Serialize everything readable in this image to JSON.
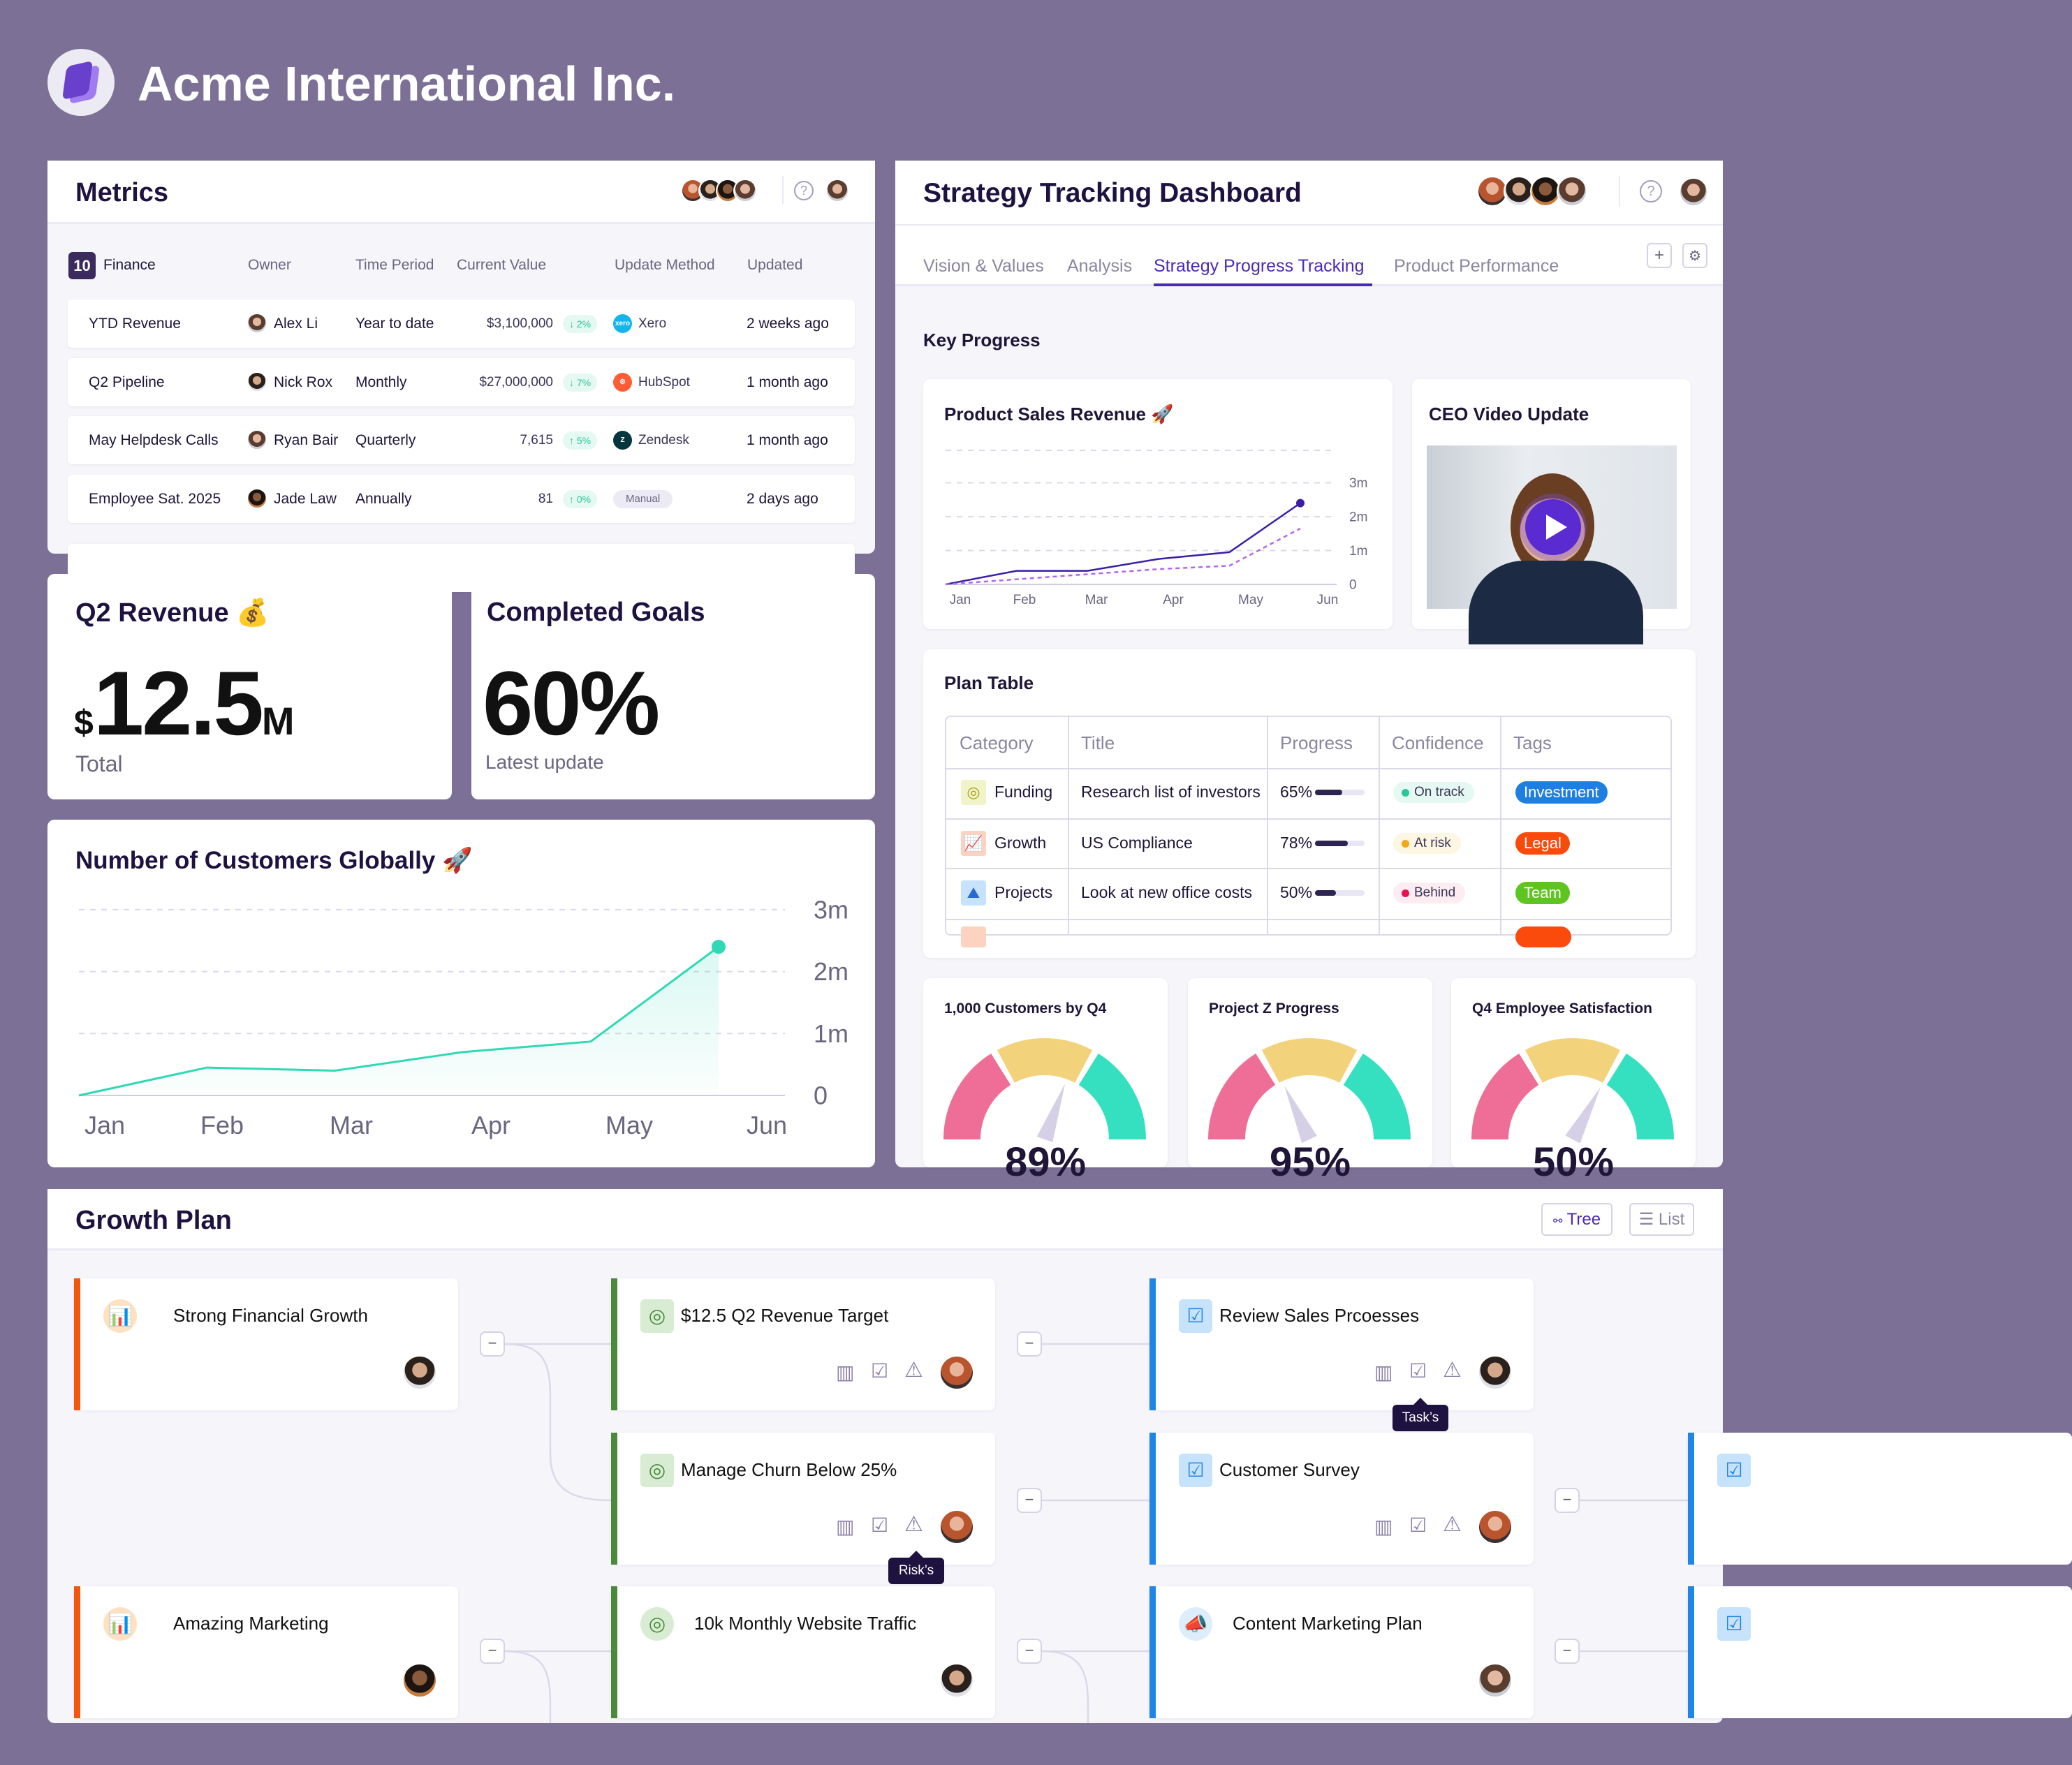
{
  "app": {
    "title": "Acme International Inc."
  },
  "metrics": {
    "title": "Metrics",
    "group_count": "10",
    "group_name": "Finance",
    "columns": [
      "Owner",
      "Time Period",
      "Current Value",
      "Update Method",
      "Updated"
    ],
    "rows": [
      {
        "name": "YTD Revenue",
        "owner": "Alex Li",
        "period": "Year to date",
        "value": "$3,100,000",
        "change": "↓ 2%",
        "method": "Xero",
        "method_icon": "xero-logo",
        "updated": "2 weeks ago"
      },
      {
        "name": "Q2 Pipeline",
        "owner": "Nick Rox",
        "period": "Monthly",
        "value": "$27,000,000",
        "change": "↓ 7%",
        "method": "HubSpot",
        "method_icon": "hubspot-logo",
        "updated": "1 month ago"
      },
      {
        "name": "May Helpdesk Calls",
        "owner": "Ryan Bair",
        "period": "Quarterly",
        "value": "7,615",
        "change": "↑ 5%",
        "method": "Zendesk",
        "method_icon": "zendesk-logo",
        "updated": "1 month ago"
      },
      {
        "name": "Employee Sat. 2025",
        "owner": "Jade Law",
        "period": "Annually",
        "value": "81",
        "change": "↑ 0%",
        "method": "Manual",
        "method_icon": "",
        "updated": "2 days ago"
      }
    ]
  },
  "q2_revenue": {
    "title": "Q2 Revenue 💰",
    "currency": "$",
    "value": "12.5",
    "unit": "M",
    "caption": "Total"
  },
  "completed_goals": {
    "title": "Completed Goals",
    "value": "60%",
    "caption": "Latest update"
  },
  "chart_data": [
    {
      "type": "area",
      "title": "Number of Customers Globally 🚀",
      "categories": [
        "Jan",
        "Feb",
        "Mar",
        "Apr",
        "May",
        "Jun"
      ],
      "y_ticks": [
        "0",
        "1m",
        "2m",
        "3m"
      ],
      "ylim": [
        0,
        3
      ],
      "grid": true,
      "color": "#2fd9b5",
      "series": [
        {
          "values": [
            0,
            0.45,
            0.4,
            0.7,
            0.87,
            2.4
          ]
        }
      ]
    },
    {
      "type": "line",
      "title": "Product Sales Revenue 🚀",
      "categories": [
        "Jan",
        "Feb",
        "Mar",
        "Apr",
        "May",
        "Jun"
      ],
      "y_ticks": [
        "0",
        "1m",
        "2m",
        "3m"
      ],
      "ylim": [
        0,
        4
      ],
      "grid": true,
      "series": [
        {
          "values": [
            0,
            0.4,
            0.4,
            0.75,
            0.95,
            2.4
          ],
          "color": "#3b1fa3",
          "style": "solid"
        },
        {
          "values": [
            0,
            0.15,
            0.3,
            0.45,
            0.55,
            1.65
          ],
          "color": "#b266f0",
          "style": "dashed"
        }
      ]
    }
  ],
  "strategy": {
    "title": "Strategy Tracking Dashboard",
    "tabs": [
      "Vision & Values",
      "Analysis",
      "Strategy Progress Tracking",
      "Product Performance"
    ],
    "active_tab": 2,
    "add_label": "+",
    "section": "Key Progress",
    "video_title": "CEO Video Update",
    "plan_table": {
      "title": "Plan Table",
      "columns": [
        "Category",
        "Title",
        "Progress",
        "Confidence",
        "Tags"
      ],
      "rows": [
        {
          "category": "Funding",
          "icon": "target-icon",
          "icon_bg": "#f1f3c8",
          "title": "Research list of investors",
          "progress": "65%",
          "progress_value": 65,
          "confidence": "On track",
          "conf_color": "#2bc79a",
          "conf_bg": "#e6f8f2",
          "tag": "Investment",
          "tag_color": "#1f7fe0"
        },
        {
          "category": "Growth",
          "icon": "growth-chart-icon",
          "icon_bg": "#fcd2c0",
          "title": "US Compliance",
          "progress": "78%",
          "progress_value": 78,
          "confidence": "At risk",
          "conf_color": "#f0a81c",
          "conf_bg": "#fdf6e2",
          "tag": "Legal",
          "tag_color": "#fa4a0c"
        },
        {
          "category": "Projects",
          "icon": "mountain-flag-icon",
          "icon_bg": "#c7e2fb",
          "title": "Look at new office costs",
          "progress": "50%",
          "progress_value": 50,
          "confidence": "Behind",
          "conf_color": "#e8124f",
          "conf_bg": "#fdecf1",
          "tag": "Team",
          "tag_color": "#5ec41f"
        }
      ]
    },
    "gauges": [
      {
        "title": "1,000 Customers by Q4",
        "value": "89%"
      },
      {
        "title": "Project Z Progress",
        "value": "95%"
      },
      {
        "title": "Q4 Employee Satisfaction",
        "value": "50%"
      }
    ]
  },
  "growth_plan": {
    "title": "Growth Plan",
    "view_tree": "Tree",
    "view_list": "List",
    "tooltips": {
      "tasks": "Task’s",
      "risks": "Risk’s"
    },
    "nodes": [
      {
        "title": "Strong Financial Growth",
        "accent": "#f2570f",
        "icon": "bar-chart-growth-icon",
        "actions": false,
        "avatar": "a2"
      },
      {
        "title": "$12.5 Q2 Revenue Target",
        "accent": "#4a8a3a",
        "icon": "target-icon",
        "actions": true,
        "avatar": "a5"
      },
      {
        "title": "Review Sales Prcoesses",
        "accent": "#1f86e8",
        "icon": "checklist-icon",
        "actions": true,
        "avatar": "a2"
      },
      {
        "title": "Manage Churn Below 25%",
        "accent": "#4a8a3a",
        "icon": "target-icon",
        "actions": true,
        "avatar": "a5"
      },
      {
        "title": "Customer Survey",
        "accent": "#1f86e8",
        "icon": "checklist-icon",
        "actions": true,
        "avatar": "a5"
      },
      {
        "title": "",
        "accent": "#1f86e8",
        "icon": "checklist-icon",
        "actions": false,
        "avatar": ""
      },
      {
        "title": "Amazing Marketing",
        "accent": "#f2570f",
        "icon": "bar-chart-growth-icon",
        "actions": false,
        "avatar": "a3"
      },
      {
        "title": "10k Monthly Website Traffic",
        "accent": "#4a8a3a",
        "icon": "monitor-target-icon",
        "actions": false,
        "avatar": "a2"
      },
      {
        "title": "Content Marketing Plan",
        "accent": "#1f86e8",
        "icon": "megaphone-icon",
        "actions": false,
        "avatar": "a4"
      },
      {
        "title": "",
        "accent": "#1f86e8",
        "icon": "checklist-icon",
        "actions": false,
        "avatar": ""
      }
    ]
  }
}
